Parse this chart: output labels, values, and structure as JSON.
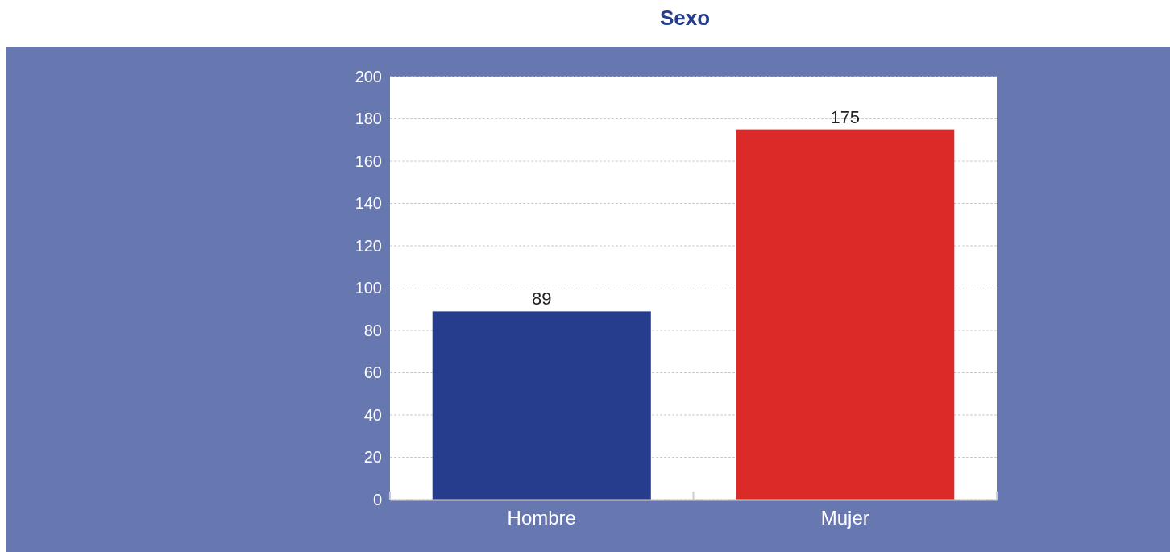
{
  "chart_data": {
    "type": "bar",
    "title": "Sexo",
    "categories": [
      "Hombre",
      "Mujer"
    ],
    "values": [
      89,
      175
    ],
    "colors": [
      "#253d8c",
      "#dc2a28"
    ],
    "ylim": [
      0,
      200
    ],
    "yticks": [
      0,
      20,
      40,
      60,
      80,
      100,
      120,
      140,
      160,
      180,
      200
    ],
    "grid": "y",
    "data_labels": true
  }
}
